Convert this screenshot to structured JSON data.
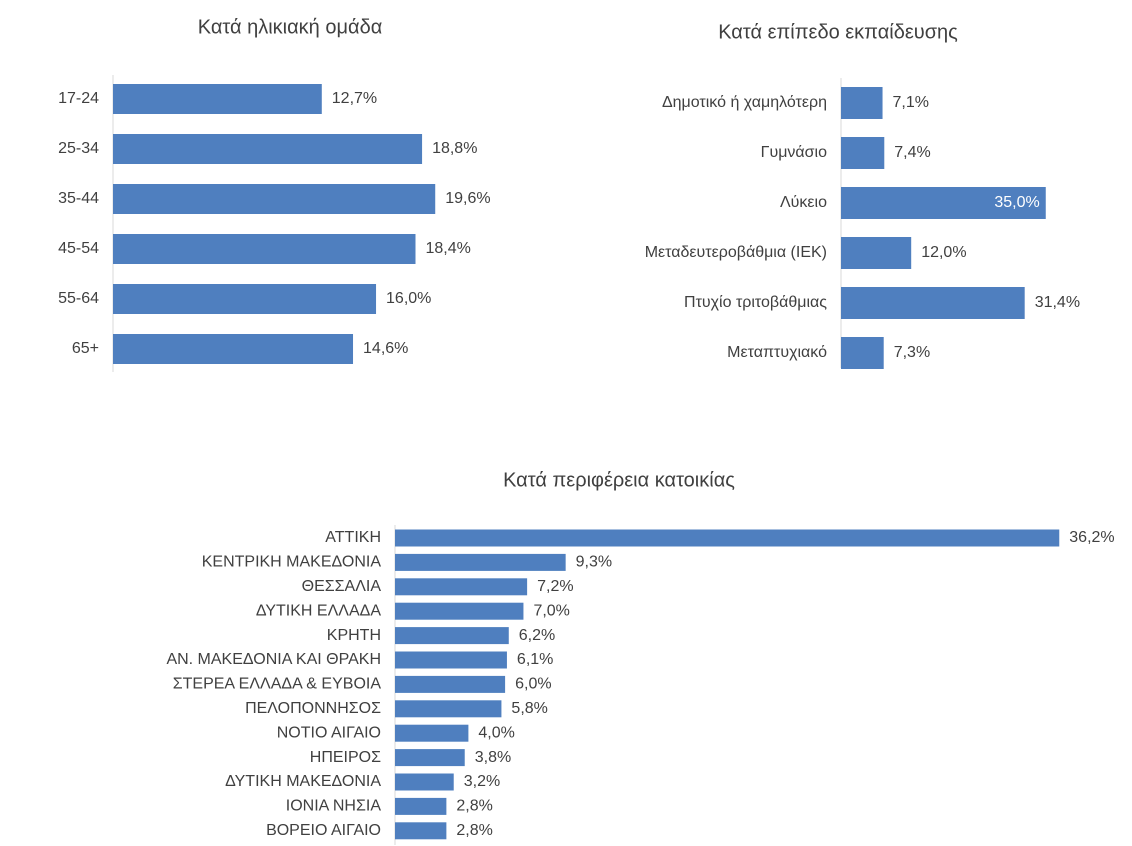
{
  "chart_data": [
    {
      "type": "bar",
      "orientation": "horizontal",
      "title": "Κατά ηλικιακή ομάδα",
      "categories": [
        "17-24",
        "25-34",
        "35-44",
        "45-54",
        "55-64",
        "65+"
      ],
      "values": [
        12.7,
        18.8,
        19.6,
        18.4,
        16.0,
        14.6
      ],
      "value_labels": [
        "12,7%",
        "18,8%",
        "19,6%",
        "18,4%",
        "16,0%",
        "14,6%"
      ],
      "color": "#4f7fbf",
      "xlim": [
        0,
        25
      ]
    },
    {
      "type": "bar",
      "orientation": "horizontal",
      "title": "Κατά επίπεδο εκπαίδευσης",
      "categories": [
        "Δημοτικό ή χαμηλότερη",
        "Γυμνάσιο",
        "Λύκειο",
        "Μεταδευτεροβάθμια (ΙΕΚ)",
        "Πτυχίο τριτοβάθμιας",
        "Μεταπτυχιακό"
      ],
      "values": [
        7.1,
        7.4,
        35.0,
        12.0,
        31.4,
        7.3
      ],
      "value_labels": [
        "7,1%",
        "7,4%",
        "35,0%",
        "12,0%",
        "31,4%",
        "7,3%"
      ],
      "color": "#4f7fbf",
      "xlim": [
        0,
        40
      ]
    },
    {
      "type": "bar",
      "orientation": "horizontal",
      "title": "Κατά περιφέρεια κατοικίας",
      "categories": [
        "ΑΤΤΙΚΗ",
        "ΚΕΝΤΡΙΚΗ ΜΑΚΕΔΟΝΙΑ",
        "ΘΕΣΣΑΛΙΑ",
        "ΔΥΤΙΚΗ ΕΛΛΑΔΑ",
        "ΚΡΗΤΗ",
        "ΑΝ. ΜΑΚΕΔΟΝΙΑ ΚΑΙ ΘΡΑΚΗ",
        "ΣΤΕΡΕΑ ΕΛΛΑΔΑ & ΕΥΒΟΙΑ",
        "ΠΕΛΟΠΟΝΝΗΣΟΣ",
        "ΝΟΤΙΟ ΑΙΓΑΙΟ",
        "ΗΠΕΙΡΟΣ",
        "ΔΥΤΙΚΗ ΜΑΚΕΔΟΝΙΑ",
        "ΙΟΝΙΑ ΝΗΣΙΑ",
        "ΒΟΡΕΙΟ ΑΙΓΑΙΟ"
      ],
      "values": [
        36.2,
        9.3,
        7.2,
        7.0,
        6.2,
        6.1,
        6.0,
        5.8,
        4.0,
        3.8,
        3.2,
        2.8,
        2.8
      ],
      "value_labels": [
        "36,2%",
        "9,3%",
        "7,2%",
        "7,0%",
        "6,2%",
        "6,1%",
        "6,0%",
        "5,8%",
        "4,0%",
        "3,8%",
        "3,2%",
        "2,8%",
        "2,8%"
      ],
      "color": "#4f7fbf",
      "xlim": [
        0,
        40
      ]
    }
  ]
}
